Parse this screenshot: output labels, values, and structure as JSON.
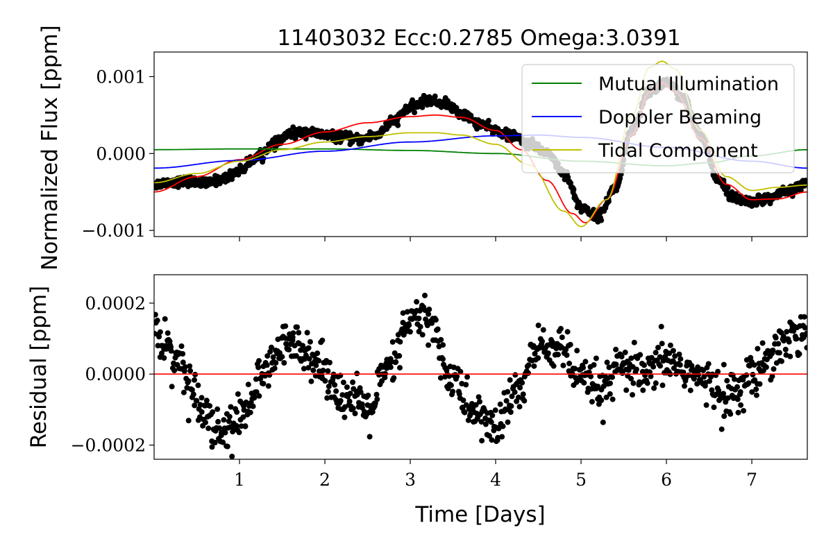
{
  "chart_data": [
    {
      "type": "scatter",
      "title": "11403032 Ecc:0.2785 Omega:3.0391",
      "xlabel": "",
      "ylabel": "Normalized Flux [ppm]",
      "xlim": [
        0.0,
        7.65
      ],
      "ylim": [
        -0.00108,
        0.00132
      ],
      "yticks": [
        {
          "value": 0.001,
          "label": "0.001"
        },
        {
          "value": 0.0,
          "label": "0.000"
        },
        {
          "value": -0.001,
          "label": "−0.001"
        }
      ],
      "xticks": [
        1,
        2,
        3,
        4,
        5,
        6,
        7
      ],
      "grid": false,
      "legend_position": "top-right",
      "series": [
        {
          "name": "",
          "kind": "scatter",
          "color": "#000000",
          "x": [
            0.0,
            0.2,
            0.4,
            0.6,
            0.8,
            1.0,
            1.2,
            1.4,
            1.6,
            1.8,
            2.0,
            2.2,
            2.4,
            2.6,
            2.8,
            3.0,
            3.2,
            3.4,
            3.6,
            3.8,
            4.0,
            4.2,
            4.4,
            4.6,
            4.8,
            5.0,
            5.2,
            5.4,
            5.6,
            5.8,
            6.0,
            6.2,
            6.4,
            6.6,
            6.8,
            7.0,
            7.2,
            7.4,
            7.65
          ],
          "y": [
            -0.0004,
            -0.00037,
            -0.00036,
            -0.00039,
            -0.00033,
            -0.00022,
            -5e-05,
            0.00012,
            0.00026,
            0.00028,
            0.00024,
            0.00021,
            0.00018,
            0.00024,
            0.00042,
            0.0006,
            0.00069,
            0.00065,
            0.00052,
            0.00039,
            0.0003,
            0.00022,
            0.00012,
            2e-05,
            -0.00025,
            -0.0007,
            -0.00082,
            -0.00045,
            0.0003,
            0.0008,
            0.00093,
            0.00072,
            0.00023,
            -0.00033,
            -0.00058,
            -0.00062,
            -0.00058,
            -0.0005,
            -0.00039
          ]
        },
        {
          "name": "",
          "kind": "line",
          "color": "#ff0000",
          "x": [
            0.0,
            0.5,
            1.0,
            1.5,
            2.0,
            2.5,
            3.0,
            3.3,
            3.6,
            4.0,
            4.3,
            4.6,
            4.9,
            5.05,
            5.3,
            5.6,
            5.8,
            5.95,
            6.1,
            6.4,
            6.7,
            7.0,
            7.3,
            7.65
          ],
          "y": [
            -0.0005,
            -0.0003,
            -8e-05,
            0.00012,
            0.00028,
            0.0004,
            0.00048,
            0.0005,
            0.00047,
            0.0003,
            5e-05,
            -0.00035,
            -0.00078,
            -0.0009,
            -0.0006,
            0.00025,
            0.0008,
            0.00092,
            0.0008,
            0.0002,
            -0.0004,
            -0.0006,
            -0.00059,
            -0.0005
          ]
        },
        {
          "name": "Mutual Illumination",
          "kind": "line",
          "color": "#008000",
          "x": [
            0.0,
            1.0,
            2.0,
            3.0,
            4.0,
            5.0,
            6.0,
            6.5,
            7.0,
            7.65
          ],
          "y": [
            5e-05,
            6e-05,
            6e-05,
            4e-05,
            0.0,
            -0.0001,
            -0.00016,
            -0.00012,
            -3e-05,
            5e-05
          ]
        },
        {
          "name": "Doppler Beaming",
          "kind": "line",
          "color": "#0000ff",
          "x": [
            0.0,
            1.0,
            2.0,
            3.0,
            4.0,
            4.5,
            5.0,
            6.0,
            7.0,
            7.65
          ],
          "y": [
            -0.00019,
            -9e-05,
            3e-05,
            0.00015,
            0.00023,
            0.00024,
            0.00021,
            8e-05,
            -0.0001,
            -0.00019
          ]
        },
        {
          "name": "Tidal Component",
          "kind": "line",
          "color": "#bfbf00",
          "x": [
            0.0,
            0.5,
            1.0,
            1.5,
            2.0,
            2.5,
            3.0,
            3.3,
            3.6,
            4.0,
            4.4,
            4.8,
            5.0,
            5.3,
            5.6,
            5.8,
            5.95,
            6.1,
            6.4,
            6.7,
            7.0,
            7.3,
            7.65
          ],
          "y": [
            -0.00038,
            -0.00026,
            -0.0001,
            5e-05,
            0.00015,
            0.00022,
            0.00027,
            0.00027,
            0.00024,
            0.00012,
            -0.00015,
            -0.00075,
            -0.00095,
            -0.0006,
            0.0005,
            0.00112,
            0.0012,
            0.0011,
            0.0003,
            -0.0003,
            -0.00048,
            -0.00044,
            -0.00041
          ]
        }
      ]
    },
    {
      "type": "scatter",
      "title": "",
      "xlabel": "Time [Days]",
      "ylabel": "Residual [ppm]",
      "xlim": [
        0.0,
        7.65
      ],
      "ylim": [
        -0.00024,
        0.00028
      ],
      "yticks": [
        {
          "value": 0.0002,
          "label": "0.0002"
        },
        {
          "value": 0.0,
          "label": "0.0000"
        },
        {
          "value": -0.0002,
          "label": "−0.0002"
        }
      ],
      "xticks": [
        1,
        2,
        3,
        4,
        5,
        6,
        7
      ],
      "grid": false,
      "series": [
        {
          "name": "",
          "kind": "scatter",
          "color": "#000000",
          "x": [
            0.0,
            0.25,
            0.5,
            0.75,
            1.0,
            1.25,
            1.5,
            1.7,
            2.0,
            2.25,
            2.5,
            2.75,
            3.0,
            3.2,
            3.5,
            3.75,
            4.0,
            4.25,
            4.5,
            4.75,
            5.0,
            5.25,
            5.5,
            5.75,
            6.0,
            6.25,
            6.5,
            6.75,
            7.0,
            7.25,
            7.5,
            7.65
          ],
          "y": [
            0.00013,
            5e-05,
            -6e-05,
            -0.00016,
            -0.00013,
            -2e-05,
            7e-05,
            9e-05,
            1e-05,
            -7e-05,
            -0.0001,
            1e-05,
            0.00015,
            0.00016,
            -2e-05,
            -0.00011,
            -0.00015,
            -5e-05,
            7e-05,
            8e-05,
            -2e-05,
            -4e-05,
            2e-05,
            -1e-05,
            4e-05,
            1e-05,
            -3e-05,
            -6e-05,
            -1e-05,
            7e-05,
            0.00011,
            0.00013
          ]
        },
        {
          "name": "",
          "kind": "hline",
          "color": "#ff0000",
          "y": 0.0
        }
      ]
    }
  ]
}
